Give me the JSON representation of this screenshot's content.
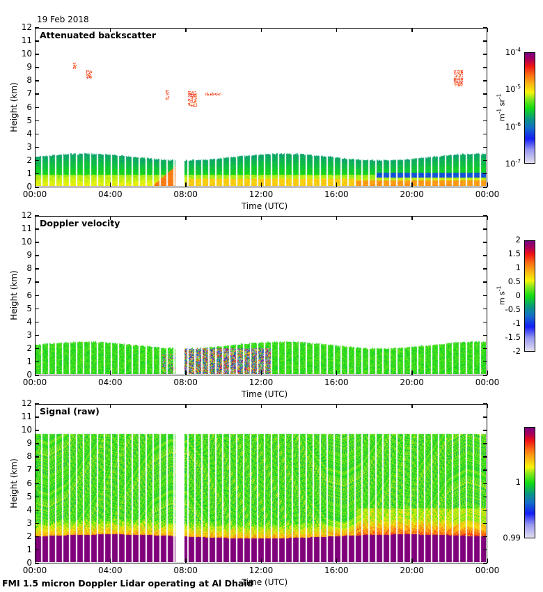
{
  "date": "19 Feb 2018",
  "footer": "FMI 1.5 micron Doppler Lidar operating at Al Dhaid",
  "chart_data": [
    {
      "type": "heatmap",
      "title": "Attenuated backscatter",
      "xlabel": "Time (UTC)",
      "ylabel": "Height (km)",
      "xticks": [
        "00:00",
        "04:00",
        "08:00",
        "12:00",
        "16:00",
        "20:00",
        "00:00"
      ],
      "yticks": [
        "0",
        "1",
        "2",
        "3",
        "4",
        "5",
        "6",
        "7",
        "8",
        "9",
        "10",
        "11",
        "12"
      ],
      "xlim_hours": [
        0,
        24
      ],
      "ylim_km": [
        0,
        12
      ],
      "colorbar": {
        "scale": "log",
        "ticks": [
          {
            "base": "10",
            "exp": "-7"
          },
          {
            "base": "10",
            "exp": "-6"
          },
          {
            "base": "10",
            "exp": "-5"
          },
          {
            "base": "10",
            "exp": "-4"
          }
        ],
        "range": [
          1e-07,
          0.0001
        ],
        "unit_parts": [
          "m",
          "-1",
          " sr",
          "-1"
        ]
      },
      "data_gap_hours": [
        7.4,
        7.9
      ],
      "boundary_layer_top_km": 2.1,
      "features": [
        {
          "desc": "aerosol layer",
          "time_hours": [
            0,
            24
          ],
          "height_km": [
            0,
            2.3
          ],
          "level": "1e-6 to 1e-5"
        },
        {
          "desc": "elevated cloud",
          "time_hours": [
            2.0,
            2.1
          ],
          "height_km": [
            9.0,
            9.5
          ]
        },
        {
          "desc": "elevated cloud",
          "time_hours": [
            2.7,
            2.9
          ],
          "height_km": [
            8.3,
            8.9
          ]
        },
        {
          "desc": "elevated cloud",
          "time_hours": [
            6.9,
            7.0
          ],
          "height_km": [
            6.7,
            7.4
          ]
        },
        {
          "desc": "elevated cloud",
          "time_hours": [
            8.1,
            8.5
          ],
          "height_km": [
            6.2,
            7.3
          ]
        },
        {
          "desc": "elevated cloud",
          "time_hours": [
            9.0,
            9.8
          ],
          "height_km": [
            7.0,
            7.2
          ]
        },
        {
          "desc": "elevated cloud",
          "time_hours": [
            22.2,
            22.6
          ],
          "height_km": [
            7.7,
            8.9
          ]
        },
        {
          "desc": "near-surface high backscatter",
          "time_hours": [
            6.3,
            7.4
          ],
          "height_km": [
            0,
            1.2
          ]
        }
      ]
    },
    {
      "type": "heatmap",
      "title": "Doppler velocity",
      "xlabel": "Time (UTC)",
      "ylabel": "Height (km)",
      "xticks": [
        "00:00",
        "04:00",
        "08:00",
        "12:00",
        "16:00",
        "20:00",
        "00:00"
      ],
      "yticks": [
        "0",
        "1",
        "2",
        "3",
        "4",
        "5",
        "6",
        "7",
        "8",
        "9",
        "10",
        "11",
        "12"
      ],
      "xlim_hours": [
        0,
        24
      ],
      "ylim_km": [
        0,
        12
      ],
      "colorbar": {
        "scale": "linear",
        "ticks": [
          "-2",
          "-1.5",
          "-1",
          "-0.5",
          "0",
          "0.5",
          "1",
          "1.5",
          "2"
        ],
        "range": [
          -2,
          2
        ],
        "unit_parts": [
          "m s",
          "-1"
        ]
      },
      "data_gap_hours": [
        7.4,
        7.9
      ],
      "boundary_layer_top_km": 2.1,
      "features": [
        {
          "desc": "mostly near-zero velocity in boundary layer",
          "time_hours": [
            0,
            24
          ],
          "height_km": [
            0,
            2.3
          ],
          "value_ms": 0
        },
        {
          "desc": "turbulent mixing (strong up/down)",
          "time_hours": [
            8.0,
            12.5
          ],
          "height_km": [
            0,
            2.0
          ],
          "value_ms": "-2 to 2"
        }
      ]
    },
    {
      "type": "heatmap",
      "title": "Signal (raw)",
      "xlabel": "Time (UTC)",
      "ylabel": "Height (km)",
      "xticks": [
        "00:00",
        "04:00",
        "08:00",
        "12:00",
        "16:00",
        "20:00",
        "00:00"
      ],
      "yticks": [
        "0",
        "1",
        "2",
        "3",
        "4",
        "5",
        "6",
        "7",
        "8",
        "9",
        "10",
        "11",
        "12"
      ],
      "xlim_hours": [
        0,
        24
      ],
      "ylim_km": [
        0,
        12
      ],
      "colorbar": {
        "scale": "linear",
        "ticks": [
          "0.99",
          "1"
        ],
        "range": [
          0.99,
          1.01
        ],
        "unit_parts": []
      },
      "data_gap_hours": [
        7.4,
        7.9
      ],
      "max_range_km": 9.6,
      "saturated_below_km": 1.9
    }
  ]
}
